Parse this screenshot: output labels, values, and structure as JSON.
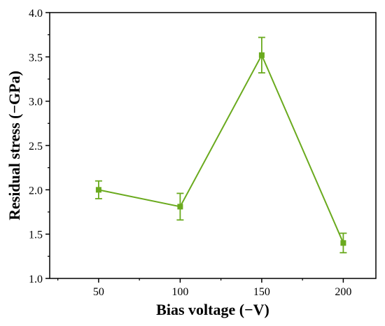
{
  "chart_data": {
    "type": "line",
    "title": "",
    "xlabel": "Bias voltage (−V)",
    "ylabel": "Residual stress (−GPa)",
    "x": [
      50,
      100,
      150,
      200
    ],
    "series": [
      {
        "values": [
          2.0,
          1.81,
          3.52,
          1.4
        ],
        "error": [
          0.1,
          0.15,
          0.2,
          0.11
        ],
        "color": "#6aaa1e",
        "marker": "square"
      }
    ],
    "xlim": [
      20,
      220
    ],
    "ylim": [
      1.0,
      4.0
    ],
    "x_ticks": [
      "50",
      "100",
      "150",
      "200"
    ],
    "y_ticks": [
      "1.0",
      "1.5",
      "2.0",
      "2.5",
      "3.0",
      "3.5",
      "4.0"
    ],
    "grid": false,
    "legend": "none"
  }
}
